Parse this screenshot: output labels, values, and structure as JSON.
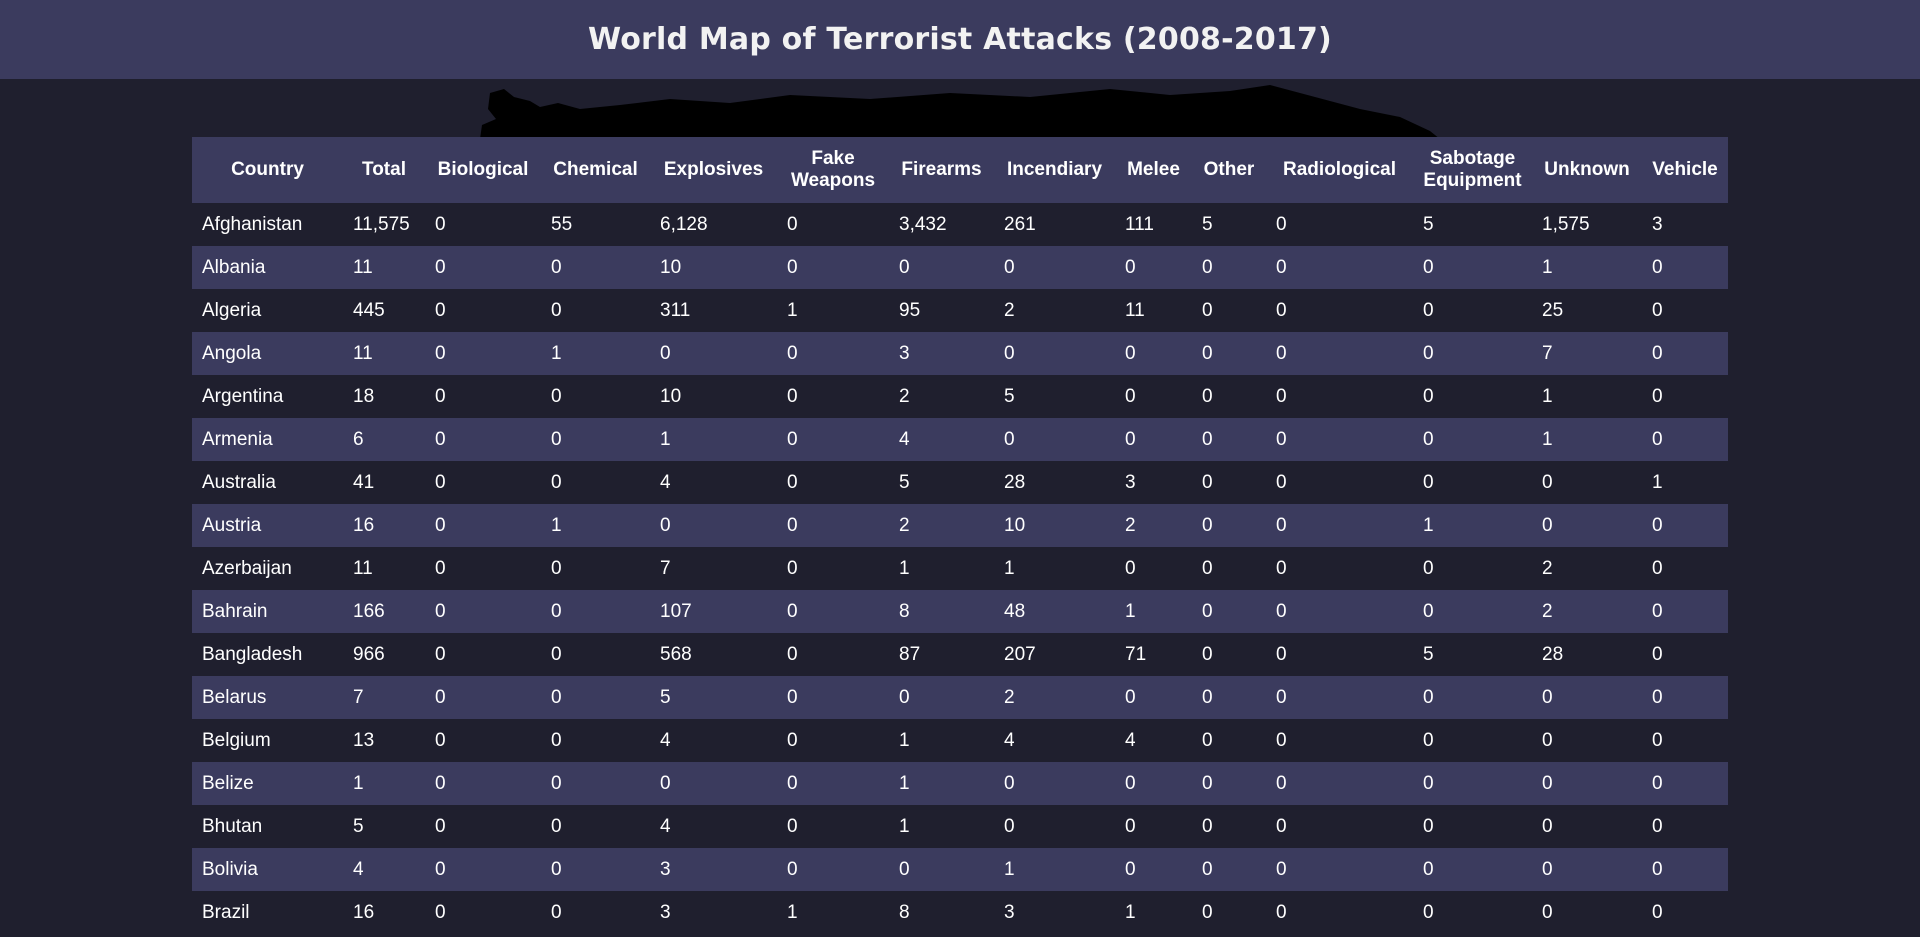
{
  "header": {
    "title": "World Map of Terrorist Attacks (2008-2017)"
  },
  "colors": {
    "header_bg": "#3b3b5e",
    "page_bg": "#1f1f2e",
    "row_alt_bg": "#3b3b5e",
    "text": "#ffffff"
  },
  "table": {
    "columns": [
      "Country",
      "Total",
      "Biological",
      "Chemical",
      "Explosives",
      "Fake Weapons",
      "Firearms",
      "Incendiary",
      "Melee",
      "Other",
      "Radiological",
      "Sabotage Equipment",
      "Unknown",
      "Vehicle"
    ],
    "rows": [
      [
        "Afghanistan",
        "11,575",
        "0",
        "55",
        "6,128",
        "0",
        "3,432",
        "261",
        "111",
        "5",
        "0",
        "5",
        "1,575",
        "3"
      ],
      [
        "Albania",
        "11",
        "0",
        "0",
        "10",
        "0",
        "0",
        "0",
        "0",
        "0",
        "0",
        "0",
        "1",
        "0"
      ],
      [
        "Algeria",
        "445",
        "0",
        "0",
        "311",
        "1",
        "95",
        "2",
        "11",
        "0",
        "0",
        "0",
        "25",
        "0"
      ],
      [
        "Angola",
        "11",
        "0",
        "1",
        "0",
        "0",
        "3",
        "0",
        "0",
        "0",
        "0",
        "0",
        "7",
        "0"
      ],
      [
        "Argentina",
        "18",
        "0",
        "0",
        "10",
        "0",
        "2",
        "5",
        "0",
        "0",
        "0",
        "0",
        "1",
        "0"
      ],
      [
        "Armenia",
        "6",
        "0",
        "0",
        "1",
        "0",
        "4",
        "0",
        "0",
        "0",
        "0",
        "0",
        "1",
        "0"
      ],
      [
        "Australia",
        "41",
        "0",
        "0",
        "4",
        "0",
        "5",
        "28",
        "3",
        "0",
        "0",
        "0",
        "0",
        "1"
      ],
      [
        "Austria",
        "16",
        "0",
        "1",
        "0",
        "0",
        "2",
        "10",
        "2",
        "0",
        "0",
        "1",
        "0",
        "0"
      ],
      [
        "Azerbaijan",
        "11",
        "0",
        "0",
        "7",
        "0",
        "1",
        "1",
        "0",
        "0",
        "0",
        "0",
        "2",
        "0"
      ],
      [
        "Bahrain",
        "166",
        "0",
        "0",
        "107",
        "0",
        "8",
        "48",
        "1",
        "0",
        "0",
        "0",
        "2",
        "0"
      ],
      [
        "Bangladesh",
        "966",
        "0",
        "0",
        "568",
        "0",
        "87",
        "207",
        "71",
        "0",
        "0",
        "5",
        "28",
        "0"
      ],
      [
        "Belarus",
        "7",
        "0",
        "0",
        "5",
        "0",
        "0",
        "2",
        "0",
        "0",
        "0",
        "0",
        "0",
        "0"
      ],
      [
        "Belgium",
        "13",
        "0",
        "0",
        "4",
        "0",
        "1",
        "4",
        "4",
        "0",
        "0",
        "0",
        "0",
        "0"
      ],
      [
        "Belize",
        "1",
        "0",
        "0",
        "0",
        "0",
        "1",
        "0",
        "0",
        "0",
        "0",
        "0",
        "0",
        "0"
      ],
      [
        "Bhutan",
        "5",
        "0",
        "0",
        "4",
        "0",
        "1",
        "0",
        "0",
        "0",
        "0",
        "0",
        "0",
        "0"
      ],
      [
        "Bolivia",
        "4",
        "0",
        "0",
        "3",
        "0",
        "0",
        "1",
        "0",
        "0",
        "0",
        "0",
        "0",
        "0"
      ],
      [
        "Brazil",
        "16",
        "0",
        "0",
        "3",
        "1",
        "8",
        "3",
        "1",
        "0",
        "0",
        "0",
        "0",
        "0"
      ]
    ]
  }
}
